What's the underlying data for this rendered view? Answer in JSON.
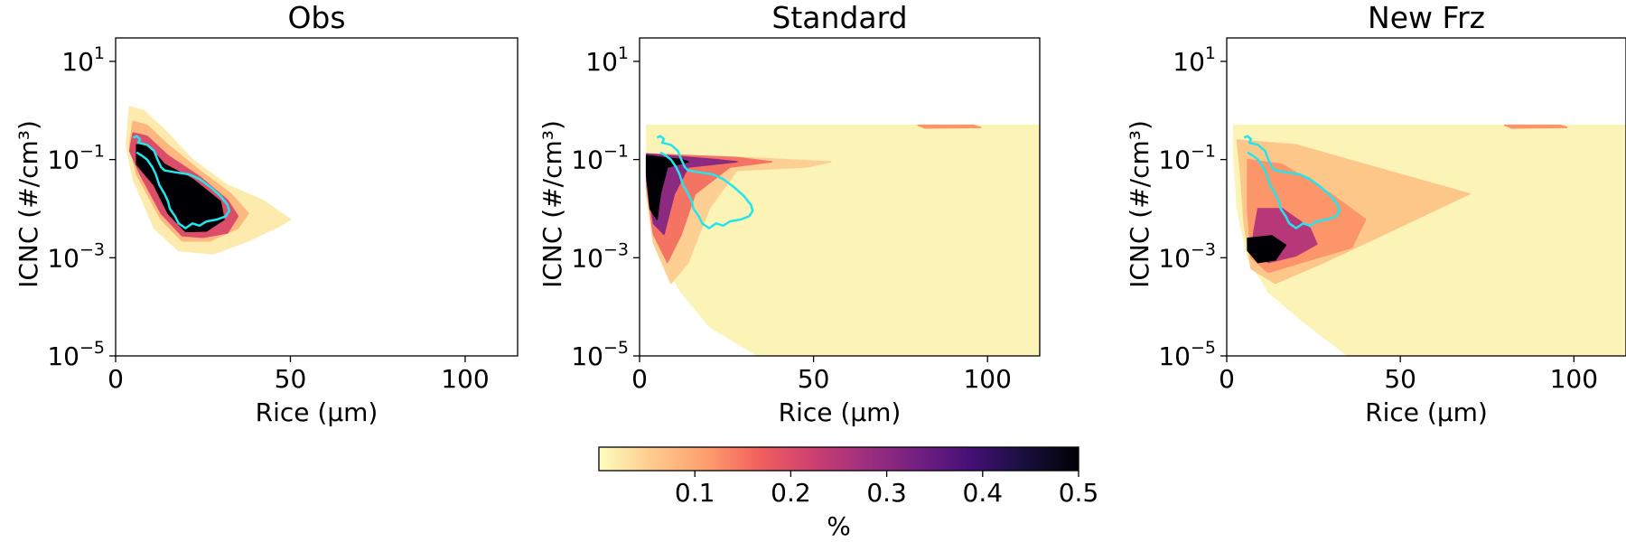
{
  "chart_data": [
    {
      "type": "heatmap",
      "title": "Obs",
      "xlabel": "Rice (μm)",
      "ylabel": "ICNC (#/cm³)",
      "xlim": [
        0,
        115
      ],
      "ylim": [
        1e-05,
        30
      ],
      "yscale": "log",
      "xticks": [
        0,
        50,
        100
      ],
      "yticks": [
        {
          "base": "10",
          "exp": "1"
        },
        {
          "base": "10",
          "exp": "−1"
        },
        {
          "base": "10",
          "exp": "−3"
        },
        {
          "base": "10",
          "exp": "−5"
        }
      ],
      "overlay": "cyan contour of observed distribution",
      "regions": [
        {
          "level": 0.02,
          "points": [
            [
              4,
              1.2
            ],
            [
              8,
              1.0
            ],
            [
              14,
              0.4
            ],
            [
              22,
              0.1
            ],
            [
              32,
              0.03
            ],
            [
              42,
              0.015
            ],
            [
              50,
              0.006
            ],
            [
              47,
              0.0045
            ],
            [
              38,
              0.0022
            ],
            [
              28,
              0.0012
            ],
            [
              18,
              0.0014
            ],
            [
              11,
              0.004
            ],
            [
              5,
              0.04
            ],
            [
              3,
              0.2
            ]
          ]
        },
        {
          "level": 0.08,
          "points": [
            [
              5,
              0.6
            ],
            [
              9,
              0.5
            ],
            [
              15,
              0.2
            ],
            [
              24,
              0.06
            ],
            [
              33,
              0.02
            ],
            [
              38,
              0.008
            ],
            [
              35,
              0.004
            ],
            [
              27,
              0.0022
            ],
            [
              19,
              0.0022
            ],
            [
              13,
              0.006
            ],
            [
              6,
              0.05
            ],
            [
              4,
              0.2
            ]
          ]
        },
        {
          "level": 0.2,
          "points": [
            [
              5,
              0.35
            ],
            [
              9,
              0.3
            ],
            [
              15,
              0.12
            ],
            [
              24,
              0.045
            ],
            [
              32,
              0.015
            ],
            [
              35,
              0.007
            ],
            [
              32,
              0.0032
            ],
            [
              25,
              0.0026
            ],
            [
              19,
              0.0028
            ],
            [
              13,
              0.008
            ],
            [
              7,
              0.05
            ],
            [
              4,
              0.15
            ]
          ]
        },
        {
          "level": 0.5,
          "points": [
            [
              6,
              0.2
            ],
            [
              9,
              0.2
            ],
            [
              14,
              0.08
            ],
            [
              22,
              0.04
            ],
            [
              30,
              0.014
            ],
            [
              31,
              0.006
            ],
            [
              26,
              0.0035
            ],
            [
              20,
              0.0034
            ],
            [
              15,
              0.008
            ],
            [
              11,
              0.03
            ],
            [
              6,
              0.08
            ]
          ]
        }
      ]
    },
    {
      "type": "heatmap",
      "title": "Standard",
      "xlabel": "Rice (μm)",
      "ylabel": "ICNC (#/cm³)",
      "xlim": [
        0,
        115
      ],
      "ylim": [
        1e-05,
        30
      ],
      "yscale": "log",
      "xticks": [
        0,
        50,
        100
      ],
      "yticks": [
        {
          "base": "10",
          "exp": "1"
        },
        {
          "base": "10",
          "exp": "−1"
        },
        {
          "base": "10",
          "exp": "−3"
        },
        {
          "base": "10",
          "exp": "−5"
        }
      ],
      "overlay": "cyan contour of observed distribution",
      "regions": [
        {
          "level": 0.01,
          "points": [
            [
              2,
              0.5
            ],
            [
              115,
              0.5
            ],
            [
              115,
              1e-05
            ],
            [
              34,
              1e-05
            ],
            [
              20,
              4e-05
            ],
            [
              12,
              0.0002
            ],
            [
              6,
              0.001
            ],
            [
              3,
              0.01
            ],
            [
              2,
              0.1
            ]
          ]
        },
        {
          "level": 0.05,
          "points": [
            [
              2,
              0.13
            ],
            [
              30,
              0.11
            ],
            [
              55,
              0.09
            ],
            [
              48,
              0.07
            ],
            [
              28,
              0.06
            ],
            [
              20,
              0.01
            ],
            [
              14,
              0.0008
            ],
            [
              9,
              0.0003
            ],
            [
              4,
              0.002
            ],
            [
              2,
              0.02
            ]
          ]
        },
        {
          "level": 0.15,
          "points": [
            [
              2,
              0.13
            ],
            [
              28,
              0.11
            ],
            [
              38,
              0.09
            ],
            [
              26,
              0.07
            ],
            [
              16,
              0.02
            ],
            [
              12,
              0.003
            ],
            [
              8,
              0.0008
            ],
            [
              4,
              0.003
            ],
            [
              2,
              0.03
            ]
          ]
        },
        {
          "level": 0.3,
          "points": [
            [
              2,
              0.13
            ],
            [
              22,
              0.1
            ],
            [
              28,
              0.09
            ],
            [
              14,
              0.07
            ],
            [
              10,
              0.02
            ],
            [
              7,
              0.003
            ],
            [
              4,
              0.005
            ],
            [
              2,
              0.04
            ]
          ]
        },
        {
          "level": 0.5,
          "points": [
            [
              2,
              0.12
            ],
            [
              12,
              0.1
            ],
            [
              14,
              0.09
            ],
            [
              8,
              0.07
            ],
            [
              6,
              0.02
            ],
            [
              5,
              0.006
            ],
            [
              3,
              0.01
            ],
            [
              2,
              0.05
            ]
          ]
        },
        {
          "level": 0.12,
          "points": [
            [
              80,
              0.5
            ],
            [
              96,
              0.5
            ],
            [
              98,
              0.45
            ],
            [
              82,
              0.44
            ]
          ]
        }
      ]
    },
    {
      "type": "heatmap",
      "title": "New Frz",
      "xlabel": "Rice (μm)",
      "ylabel": "ICNC (#/cm³)",
      "xlim": [
        0,
        115
      ],
      "ylim": [
        1e-05,
        30
      ],
      "yscale": "log",
      "xticks": [
        0,
        50,
        100
      ],
      "yticks": [
        {
          "base": "10",
          "exp": "1"
        },
        {
          "base": "10",
          "exp": "−1"
        },
        {
          "base": "10",
          "exp": "−3"
        },
        {
          "base": "10",
          "exp": "−5"
        }
      ],
      "overlay": "cyan contour of observed distribution",
      "regions": [
        {
          "level": 0.01,
          "points": [
            [
              2,
              0.5
            ],
            [
              115,
              0.5
            ],
            [
              115,
              1e-05
            ],
            [
              35,
              1e-05
            ],
            [
              22,
              5e-05
            ],
            [
              12,
              0.0002
            ],
            [
              6,
              0.001
            ],
            [
              3,
              0.01
            ],
            [
              2,
              0.1
            ]
          ]
        },
        {
          "level": 0.06,
          "points": [
            [
              3,
              0.25
            ],
            [
              20,
              0.2
            ],
            [
              50,
              0.05
            ],
            [
              70,
              0.02
            ],
            [
              40,
              0.002
            ],
            [
              28,
              0.0008
            ],
            [
              14,
              0.0003
            ],
            [
              7,
              0.0006
            ],
            [
              5,
              0.005
            ],
            [
              4,
              0.05
            ]
          ]
        },
        {
          "level": 0.12,
          "points": [
            [
              6,
              0.1
            ],
            [
              16,
              0.08
            ],
            [
              30,
              0.02
            ],
            [
              40,
              0.006
            ],
            [
              36,
              0.0016
            ],
            [
              24,
              0.0009
            ],
            [
              12,
              0.0005
            ],
            [
              7,
              0.001
            ],
            [
              6,
              0.01
            ]
          ]
        },
        {
          "level": 0.25,
          "points": [
            [
              9,
              0.01
            ],
            [
              16,
              0.01
            ],
            [
              24,
              0.004
            ],
            [
              26,
              0.0019
            ],
            [
              20,
              0.0011
            ],
            [
              12,
              0.0008
            ],
            [
              7,
              0.0013
            ],
            [
              8,
              0.004
            ]
          ]
        },
        {
          "level": 0.5,
          "points": [
            [
              6,
              0.0025
            ],
            [
              13,
              0.0028
            ],
            [
              17,
              0.0018
            ],
            [
              14,
              0.0009
            ],
            [
              9,
              0.0008
            ],
            [
              6,
              0.0014
            ]
          ]
        },
        {
          "level": 0.12,
          "points": [
            [
              80,
              0.5
            ],
            [
              96,
              0.5
            ],
            [
              98,
              0.45
            ],
            [
              82,
              0.44
            ]
          ]
        }
      ]
    }
  ],
  "colorbar": {
    "colormap": "magma_r",
    "range": [
      0,
      0.5
    ],
    "ticks": [
      "0.1",
      "0.2",
      "0.3",
      "0.4",
      "0.5"
    ],
    "tick_values": [
      0.1,
      0.2,
      0.3,
      0.4,
      0.5
    ],
    "label": "%"
  },
  "contour": {
    "color": "#22e6ee",
    "points": [
      [
        5,
        0.28
      ],
      [
        6,
        0.3
      ],
      [
        7,
        0.26
      ],
      [
        6.5,
        0.22
      ],
      [
        9,
        0.2
      ],
      [
        11,
        0.15
      ],
      [
        12,
        0.1
      ],
      [
        13,
        0.07
      ],
      [
        14,
        0.06
      ],
      [
        17,
        0.055
      ],
      [
        21,
        0.05
      ],
      [
        24,
        0.04
      ],
      [
        27,
        0.028
      ],
      [
        30,
        0.018
      ],
      [
        32,
        0.012
      ],
      [
        32.5,
        0.009
      ],
      [
        31.5,
        0.007
      ],
      [
        29,
        0.006
      ],
      [
        26,
        0.0055
      ],
      [
        24,
        0.0045
      ],
      [
        22,
        0.005
      ],
      [
        20,
        0.004
      ],
      [
        18,
        0.005
      ],
      [
        17,
        0.007
      ],
      [
        15.5,
        0.01
      ],
      [
        15,
        0.014
      ],
      [
        14,
        0.02
      ],
      [
        12.5,
        0.03
      ],
      [
        11.5,
        0.05
      ],
      [
        10.5,
        0.07
      ],
      [
        9,
        0.1
      ],
      [
        7.5,
        0.12
      ],
      [
        6,
        0.14
      ]
    ]
  },
  "colors": {
    "cmap_stops": [
      "#fcfdbf",
      "#feca8d",
      "#fe9f6d",
      "#f1605d",
      "#cd4071",
      "#9e2f7f",
      "#721f81",
      "#440f76",
      "#180f3d",
      "#000004"
    ]
  }
}
